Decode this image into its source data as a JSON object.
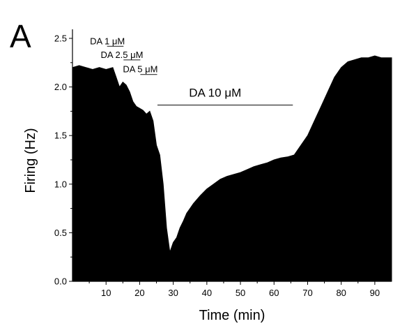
{
  "panel_label": "A",
  "chart_data": {
    "type": "area",
    "title": "",
    "xlabel": "Time (min)",
    "ylabel": "Firing (Hz)",
    "xlim": [
      0,
      95
    ],
    "ylim": [
      0,
      2.55
    ],
    "xticks": [
      10,
      20,
      30,
      40,
      50,
      60,
      70,
      80,
      90
    ],
    "yticks": [
      0.0,
      0.5,
      1.0,
      1.5,
      2.0,
      2.5
    ],
    "ytick_labels": [
      "0.0",
      "0.5",
      "1.0",
      "1.5",
      "2.0",
      "2.5"
    ],
    "grid": false,
    "series": [
      {
        "x": [
          0,
          2,
          4,
          6,
          8,
          10,
          12,
          13,
          14,
          15,
          16,
          17,
          18,
          19,
          20,
          21,
          22,
          23,
          24,
          25,
          26,
          27,
          28,
          29,
          30,
          31,
          32,
          33,
          34,
          35,
          36,
          38,
          40,
          42,
          44,
          46,
          48,
          50,
          52,
          54,
          56,
          58,
          60,
          62,
          64,
          66,
          68,
          70,
          72,
          74,
          76,
          78,
          80,
          82,
          84,
          86,
          88,
          90,
          92,
          94,
          95
        ],
        "values": [
          2.2,
          2.22,
          2.2,
          2.18,
          2.2,
          2.18,
          2.2,
          2.1,
          2.0,
          2.05,
          2.02,
          1.95,
          1.85,
          1.8,
          1.78,
          1.76,
          1.72,
          1.75,
          1.65,
          1.4,
          1.3,
          1.0,
          0.55,
          0.3,
          0.4,
          0.45,
          0.55,
          0.62,
          0.7,
          0.75,
          0.8,
          0.88,
          0.95,
          1.0,
          1.05,
          1.08,
          1.1,
          1.12,
          1.15,
          1.18,
          1.2,
          1.22,
          1.25,
          1.27,
          1.28,
          1.3,
          1.4,
          1.5,
          1.65,
          1.8,
          1.95,
          2.1,
          2.2,
          2.26,
          2.28,
          2.3,
          2.3,
          2.32,
          2.3,
          2.3,
          2.3
        ],
        "color": "#000000"
      }
    ],
    "annotations": [
      {
        "text": "DA 1 μM",
        "bar_x": [
          10.3,
          15.2
        ],
        "text_x": 5.2,
        "y": 2.44,
        "size": "small"
      },
      {
        "text": "DA 2.5 μM",
        "bar_x": [
          15.2,
          20.2
        ],
        "text_x": 8.4,
        "y": 2.3,
        "size": "small"
      },
      {
        "text": "DA 5 μM",
        "bar_x": [
          20.2,
          25.2
        ],
        "text_x": 15.0,
        "y": 2.15,
        "size": "small"
      },
      {
        "text": "DA 10 μM",
        "bar_x": [
          25.3,
          65.6
        ],
        "text_x": 34.7,
        "y": 1.9,
        "size": "large"
      }
    ]
  }
}
